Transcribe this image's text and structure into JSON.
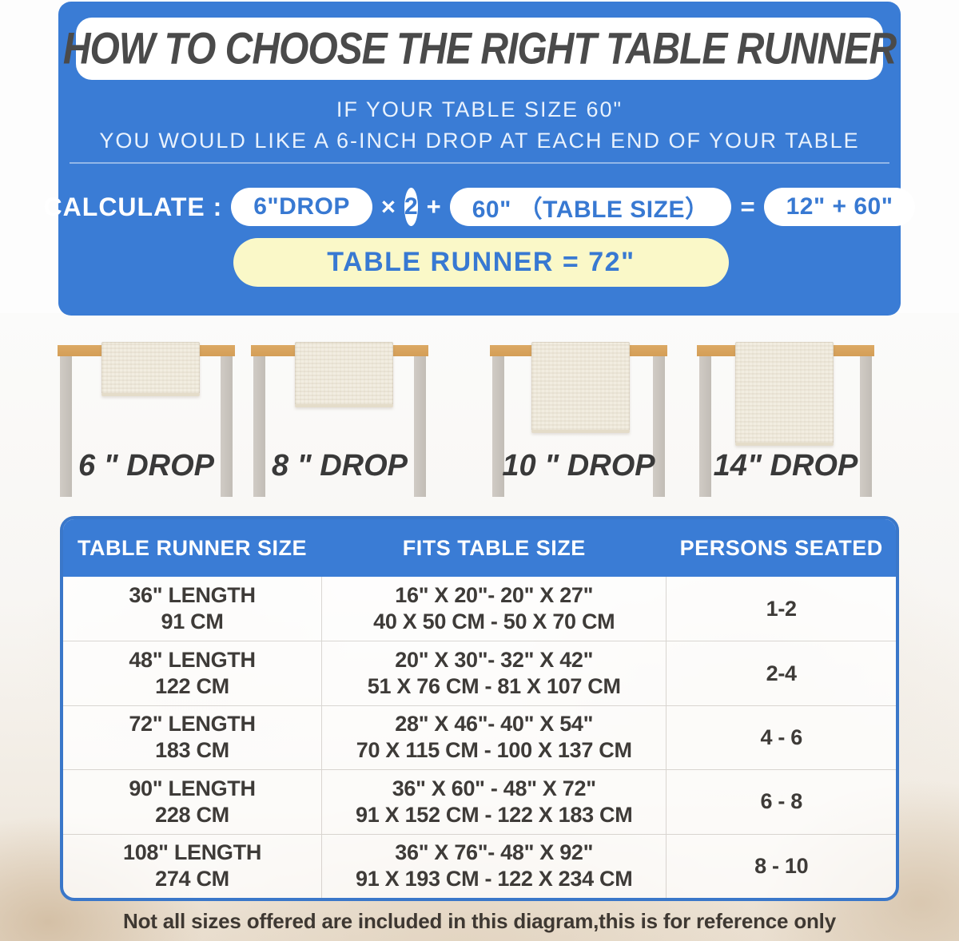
{
  "banner": {
    "title": "HOW TO CHOOSE THE RIGHT TABLE RUNNER",
    "subtitle_line1": "IF YOUR TABLE SIZE 60\"",
    "subtitle_line2": "YOU WOULD LIKE A 6-INCH DROP AT EACH END OF YOUR TABLE",
    "calculate": {
      "label": "CALCULATE :",
      "drop_pill": "6\"DROP",
      "times_sign": "×",
      "multiplier": "2",
      "plus_sign": "+",
      "table_size_pill": "60\" （TABLE SIZE）",
      "equals_sign": "=",
      "sum_pill": "12\" + 60\"",
      "result": "TABLE RUNNER = 72\""
    }
  },
  "drop_examples": [
    {
      "label": "6 \" DROP"
    },
    {
      "label": "8 \" DROP"
    },
    {
      "label": "10 \" DROP"
    },
    {
      "label": "14\" DROP"
    }
  ],
  "size_chart": {
    "columns": [
      "TABLE RUNNER SIZE",
      "FITS TABLE SIZE",
      "PERSONS SEATED"
    ],
    "rows": [
      {
        "runner_inches": "36\" LENGTH",
        "runner_cm": "91 CM",
        "fits_inches": "16\" X 20\"- 20\" X 27\"",
        "fits_cm": "40 X 50 CM - 50 X 70 CM",
        "persons": "1-2"
      },
      {
        "runner_inches": "48\" LENGTH",
        "runner_cm": "122 CM",
        "fits_inches": "20\" X 30\"- 32\" X 42\"",
        "fits_cm": "51 X 76 CM - 81 X 107 CM",
        "persons": "2-4"
      },
      {
        "runner_inches": "72\" LENGTH",
        "runner_cm": "183 CM",
        "fits_inches": "28\" X 46\"- 40\" X 54\"",
        "fits_cm": "70 X 115 CM - 100 X 137 CM",
        "persons": "4 - 6"
      },
      {
        "runner_inches": "90\" LENGTH",
        "runner_cm": "228 CM",
        "fits_inches": "36\" X 60\" - 48\" X 72\"",
        "fits_cm": "91 X 152 CM - 122 X 183 CM",
        "persons": "6 - 8"
      },
      {
        "runner_inches": "108\" LENGTH",
        "runner_cm": "274 CM",
        "fits_inches": "36\" X 76\"- 48\" X 92\"",
        "fits_cm": "91 X 193 CM - 122 X 234 CM",
        "persons": "8 - 10"
      }
    ]
  },
  "footer_note": "Not all sizes offered are included in this diagram,this is for reference only",
  "colors": {
    "accent_blue": "#3A7CD5",
    "highlight_yellow": "#FAF8C8",
    "pill_text_blue": "#3879D2",
    "title_gray": "#4A4A4A",
    "body_text": "#3E3B38",
    "tabletop_tan": "#D9A55F",
    "leg_gray": "#C9C4BE",
    "runner_cream": "#F2EDE1"
  }
}
